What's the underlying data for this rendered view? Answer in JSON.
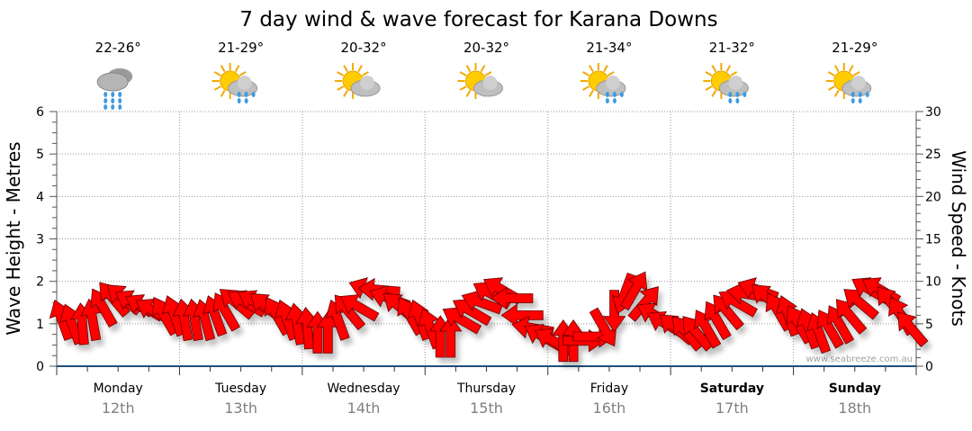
{
  "chart_data": {
    "type": "scatter",
    "title": "7 day wind & wave forecast for Karana Downs",
    "ylabel_left": "Wave Height - Metres",
    "ylabel_right": "Wind Speed - Knots",
    "ylim_left": [
      0,
      6
    ],
    "ylim_right": [
      0,
      30
    ],
    "yticks_left": [
      "0",
      "1",
      "2",
      "3",
      "4",
      "5",
      "6"
    ],
    "yticks_right": [
      "0",
      "5",
      "10",
      "15",
      "20",
      "25",
      "30"
    ],
    "grid": true,
    "watermark": "www.seabreeze.com.au",
    "days": [
      {
        "day": "Monday",
        "date": "12th",
        "temp": "22-26°",
        "icon": "rain-cloud-icon",
        "weekend": false
      },
      {
        "day": "Tuesday",
        "date": "13th",
        "temp": "21-29°",
        "icon": "sun-cloud-rain-icon",
        "weekend": false
      },
      {
        "day": "Wednesday",
        "date": "14th",
        "temp": "20-32°",
        "icon": "sun-cloud-icon",
        "weekend": false
      },
      {
        "day": "Thursday",
        "date": "15th",
        "temp": "20-32°",
        "icon": "sun-cloud-icon",
        "weekend": false
      },
      {
        "day": "Friday",
        "date": "16th",
        "temp": "21-34°",
        "icon": "sun-cloud-rain-icon",
        "weekend": false
      },
      {
        "day": "Saturday",
        "date": "17th",
        "temp": "21-32°",
        "icon": "sun-cloud-rain-icon",
        "weekend": true
      },
      {
        "day": "Sunday",
        "date": "18th",
        "temp": "21-29°",
        "icon": "sun-cloud-rain-icon",
        "weekend": true
      }
    ],
    "series": [
      {
        "name": "Wind",
        "unit": "knots",
        "interval_hours": 2,
        "speed": [
          5.5,
          5,
          5,
          5.5,
          7,
          8,
          8,
          7.5,
          7,
          6.5,
          6,
          6,
          5.5,
          5.5,
          5.5,
          6,
          6.5,
          7.5,
          7.5,
          7.5,
          7,
          6,
          5.5,
          5,
          4.5,
          4,
          4,
          5.5,
          6.5,
          7,
          9,
          9,
          8,
          7,
          6,
          5.5,
          4.5,
          3.5,
          3.5,
          5.5,
          6.5,
          7.5,
          8.5,
          9,
          8,
          6,
          4.5,
          3.5,
          3,
          3,
          3,
          3,
          3.5,
          4.5,
          6.5,
          8.5,
          9,
          7.5,
          6,
          5,
          4.5,
          4,
          4,
          4.5,
          5.5,
          6.5,
          7.5,
          8.5,
          9,
          8,
          6.5,
          6,
          5,
          4.5,
          4,
          4.5,
          5,
          6,
          7.5,
          9,
          9,
          7.5,
          6,
          4.5
        ],
        "arrow_heading_deg": [
          340,
          340,
          355,
          350,
          330,
          320,
          310,
          300,
          300,
          300,
          330,
          340,
          350,
          350,
          345,
          340,
          330,
          310,
          300,
          300,
          310,
          330,
          340,
          350,
          355,
          0,
          0,
          340,
          320,
          300,
          290,
          275,
          290,
          310,
          330,
          340,
          340,
          0,
          0,
          300,
          300,
          290,
          300,
          300,
          270,
          270,
          280,
          300,
          300,
          0,
          0,
          90,
          90,
          150,
          180,
          200,
          30,
          40,
          300,
          300,
          310,
          320,
          320,
          330,
          330,
          320,
          300,
          280,
          290,
          310,
          330,
          340,
          330,
          340,
          340,
          330,
          330,
          320,
          310,
          300,
          300,
          320,
          330,
          320
        ],
        "color": "#ff0000"
      }
    ]
  }
}
